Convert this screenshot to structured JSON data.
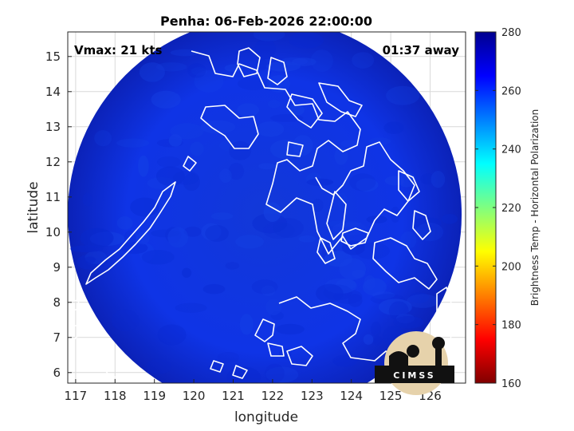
{
  "chart_data": {
    "type": "heatmap",
    "title": "Penha: 06-Feb-2026 22:00:00",
    "xlabel": "longitude",
    "ylabel": "latitude",
    "xlim": [
      116.8,
      126.9
    ],
    "ylim": [
      5.7,
      15.7
    ],
    "xticks": [
      "117",
      "118",
      "119",
      "120",
      "121",
      "122",
      "123",
      "124",
      "125",
      "126"
    ],
    "yticks": [
      "6",
      "7",
      "8",
      "9",
      "10",
      "11",
      "12",
      "13",
      "14",
      "15"
    ],
    "grid": true,
    "annotations": {
      "left": "Vmax: 21 kts",
      "right": "01:37 away"
    },
    "colorbar": {
      "label": "Brightness Temp - Horizontal Polarization",
      "range": [
        160,
        280
      ],
      "ticks": [
        "160",
        "180",
        "200",
        "220",
        "240",
        "260",
        "280"
      ],
      "colormap": "jet"
    },
    "swath": {
      "center_lon": 121.8,
      "center_lat": 10.5,
      "radius_deg": 5.0,
      "dominant_value": 265
    },
    "logo": {
      "text": "CIMSS"
    },
    "colors": {
      "swath_fill": "#0e31e0",
      "coastline": "#ffffff",
      "frame": "#262626"
    }
  }
}
